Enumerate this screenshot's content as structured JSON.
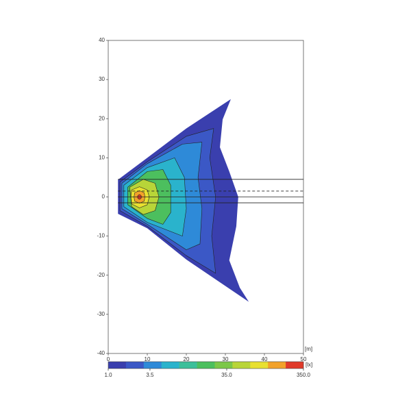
{
  "chart_data": {
    "type": "contour",
    "xlim": [
      0,
      50
    ],
    "xticks": [
      0,
      10,
      20,
      30,
      40,
      50
    ],
    "ylim": [
      -40,
      40
    ],
    "yticks": [
      -40,
      -30,
      -20,
      -10,
      0,
      10,
      20,
      30,
      40
    ],
    "x_unit": "[m]",
    "contours": [
      {
        "level": 1.3,
        "x": [
          2.5,
          10,
          20,
          31.4,
          29.3,
          28.6,
          31,
          33.3,
          32.8,
          31,
          33.7,
          36,
          20,
          10,
          2.5
        ],
        "y": [
          4.4,
          10,
          17.5,
          25,
          19.8,
          12.7,
          6.5,
          0,
          -7.5,
          -16.2,
          -23.2,
          -26.8,
          -16,
          -8,
          -4.3
        ]
      },
      {
        "level": 2.2,
        "x": [
          3,
          10,
          20,
          27,
          26,
          27.5,
          26.5,
          27.5,
          20,
          10,
          3
        ],
        "y": [
          3.8,
          9,
          15.5,
          17.5,
          10,
          0,
          -10,
          -19.5,
          -15,
          -7.5,
          -3.5
        ]
      },
      {
        "level": 3.8,
        "x": [
          3.5,
          10,
          19,
          24,
          23,
          24,
          23.5,
          20,
          10,
          3.5
        ],
        "y": [
          3.5,
          8.5,
          13.5,
          14,
          5,
          -3,
          -12,
          -13.5,
          -7,
          -3
        ]
      },
      {
        "level": 6.5,
        "x": [
          4,
          10,
          17,
          19.5,
          20,
          19,
          10,
          4
        ],
        "y": [
          3,
          7.5,
          10,
          5,
          -3,
          -10,
          -6.5,
          -2.5
        ]
      },
      {
        "level": 19,
        "x": [
          5,
          10,
          14,
          16,
          16,
          14,
          10,
          5
        ],
        "y": [
          2.5,
          6.5,
          7,
          3,
          -4,
          -7,
          -5.5,
          -2
        ]
      },
      {
        "level": 54,
        "x": [
          5.5,
          9,
          12,
          13,
          12,
          9,
          6
        ],
        "y": [
          2.5,
          4.5,
          3.5,
          0,
          -3.5,
          -4.5,
          -2.5
        ]
      },
      {
        "level": 93,
        "x": [
          6,
          8,
          10,
          10.5,
          10,
          8,
          6,
          5.8
        ],
        "y": [
          1.8,
          2.6,
          1.8,
          0,
          -2,
          -2.8,
          -1.8,
          0
        ]
      },
      {
        "level": 158,
        "x": [
          6.8,
          8,
          9.2,
          9.4,
          9.2,
          8,
          6.8,
          6.6
        ],
        "y": [
          1.1,
          1.6,
          1.1,
          0,
          -1.1,
          -1.6,
          -1.1,
          0
        ]
      },
      {
        "level": 270,
        "x": [
          7.6,
          8,
          8.4,
          8.5,
          8.4,
          8,
          7.6,
          7.5
        ],
        "y": [
          0.4,
          0.6,
          0.4,
          0,
          -0.4,
          -0.6,
          -0.4,
          0
        ]
      }
    ],
    "reference_lines": [
      {
        "y": 4.5,
        "dashed": false,
        "from_x": 2.5
      },
      {
        "y": 1.5,
        "dashed": true,
        "from_x": 2.5
      },
      {
        "y": 0,
        "dashed": false,
        "from_x": 2.5
      },
      {
        "y": -1.5,
        "dashed": false,
        "from_x": 2.5
      }
    ],
    "colorbar": {
      "clim": [
        1,
        350
      ],
      "log": true,
      "unit": "[lx]",
      "colors": [
        "#3a3fae",
        "#3b58c6",
        "#2e8ad8",
        "#2ab3cc",
        "#3cbf9a",
        "#4cbf5e",
        "#7cc748",
        "#b8d538",
        "#e8e030",
        "#f2a22a",
        "#e03a2a"
      ],
      "ticks": [
        {
          "value": 1,
          "label": "1.0"
        },
        3.5,
        {
          "value": 35,
          "label": "35.0"
        },
        {
          "value": 350,
          "label": "350.0"
        }
      ]
    }
  }
}
